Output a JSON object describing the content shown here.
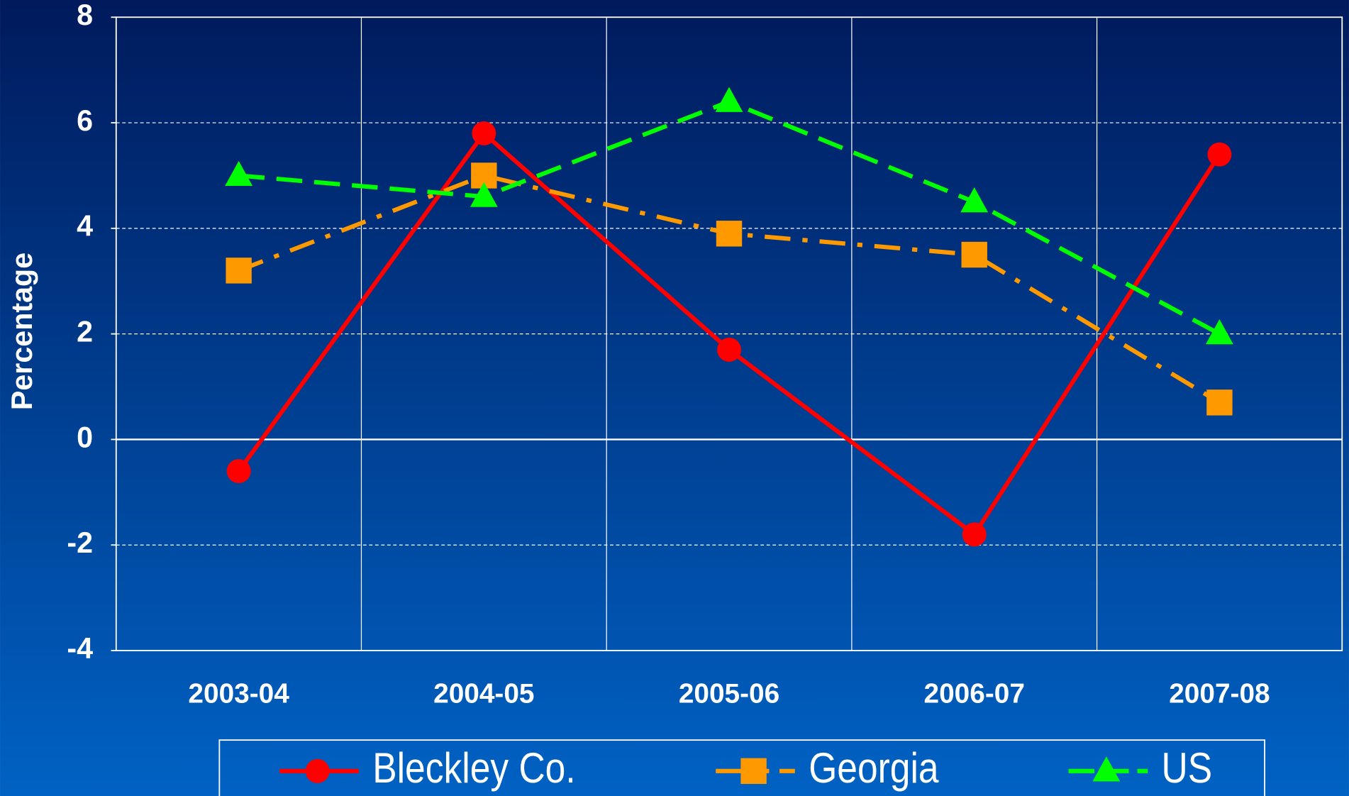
{
  "chart_data": {
    "type": "line",
    "categories": [
      "2003-04",
      "2004-05",
      "2005-06",
      "2006-07",
      "2007-08"
    ],
    "series": [
      {
        "name": "Bleckley Co.",
        "color": "#ff0000",
        "values": [
          -0.6,
          5.8,
          1.7,
          -1.8,
          5.4
        ]
      },
      {
        "name": "Georgia",
        "color": "#ff9900",
        "values": [
          3.2,
          5.0,
          3.9,
          3.5,
          0.7
        ]
      },
      {
        "name": "US",
        "color": "#00ff00",
        "values": [
          5.0,
          4.6,
          6.4,
          4.5,
          2.0
        ]
      }
    ],
    "ylabel": "Percentage",
    "ylim": [
      -4,
      8
    ],
    "yticks": [
      -4,
      -2,
      0,
      2,
      4,
      6,
      8
    ],
    "grid": true,
    "legend": "bottom"
  }
}
